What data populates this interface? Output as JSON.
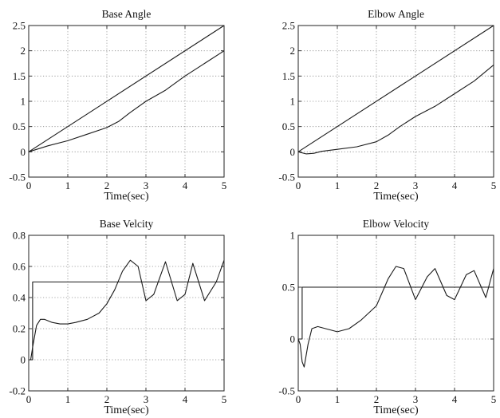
{
  "chart_data": [
    {
      "type": "line",
      "title": "Base Angle",
      "xlabel": "Time(sec)",
      "ylabel": "",
      "xlim": [
        0,
        5
      ],
      "ylim": [
        -0.5,
        2.5
      ],
      "xticks": [
        0,
        1,
        2,
        3,
        4,
        5
      ],
      "yticks": [
        -0.5,
        0,
        0.5,
        1,
        1.5,
        2,
        2.5
      ],
      "xtick_labels": [
        "0",
        "1",
        "2",
        "3",
        "4",
        "5"
      ],
      "ytick_labels": [
        "-0.5",
        "0",
        "0.5",
        "1",
        "1.5",
        "2",
        "2.5"
      ],
      "grid": true,
      "series": [
        {
          "x": [
            0,
            5
          ],
          "y": [
            0,
            2.5
          ]
        },
        {
          "x": [
            0,
            0.5,
            1.0,
            1.5,
            2.0,
            2.3,
            2.6,
            3.0,
            3.5,
            4.0,
            4.5,
            5.0
          ],
          "y": [
            0,
            0.12,
            0.22,
            0.35,
            0.48,
            0.6,
            0.78,
            1.0,
            1.22,
            1.5,
            1.75,
            2.0
          ]
        }
      ]
    },
    {
      "type": "line",
      "title": "Elbow Angle",
      "xlabel": "Time(sec)",
      "ylabel": "",
      "xlim": [
        0,
        5
      ],
      "ylim": [
        -0.5,
        2.5
      ],
      "xticks": [
        0,
        1,
        2,
        3,
        4,
        5
      ],
      "yticks": [
        -0.5,
        0,
        0.5,
        1,
        1.5,
        2,
        2.5
      ],
      "xtick_labels": [
        "0",
        "1",
        "2",
        "3",
        "4",
        "5"
      ],
      "ytick_labels": [
        "-0.5",
        "0",
        "0.5",
        "1",
        "1.5",
        "2",
        "2.5"
      ],
      "grid": true,
      "series": [
        {
          "x": [
            0,
            5
          ],
          "y": [
            0,
            2.5
          ]
        },
        {
          "x": [
            0,
            0.2,
            0.4,
            0.6,
            1.0,
            1.5,
            2.0,
            2.3,
            2.6,
            3.0,
            3.5,
            4.0,
            4.5,
            5.0
          ],
          "y": [
            0,
            -0.04,
            -0.03,
            0.01,
            0.05,
            0.1,
            0.2,
            0.33,
            0.5,
            0.7,
            0.9,
            1.15,
            1.4,
            1.72
          ]
        }
      ]
    },
    {
      "type": "line",
      "title": "Base Velcity",
      "xlabel": "Time(sec)",
      "ylabel": "",
      "xlim": [
        0,
        5
      ],
      "ylim": [
        -0.2,
        0.8
      ],
      "xticks": [
        0,
        1,
        2,
        3,
        4,
        5
      ],
      "yticks": [
        -0.2,
        0,
        0.2,
        0.4,
        0.6,
        0.8
      ],
      "xtick_labels": [
        "0",
        "1",
        "2",
        "3",
        "4",
        "5"
      ],
      "ytick_labels": [
        "-0.2",
        "0",
        "0.2",
        "0.4",
        "0.6",
        "0.8"
      ],
      "grid": true,
      "series": [
        {
          "x": [
            0,
            0.1,
            0.1,
            5
          ],
          "y": [
            0,
            0,
            0.5,
            0.5
          ]
        },
        {
          "x": [
            0,
            0.05,
            0.1,
            0.2,
            0.3,
            0.4,
            0.6,
            0.8,
            1.0,
            1.2,
            1.5,
            1.8,
            2.0,
            2.2,
            2.4,
            2.6,
            2.8,
            3.0,
            3.2,
            3.5,
            3.8,
            4.0,
            4.2,
            4.5,
            4.8,
            5.0
          ],
          "y": [
            0,
            0.0,
            0.08,
            0.22,
            0.26,
            0.26,
            0.24,
            0.23,
            0.23,
            0.24,
            0.26,
            0.3,
            0.36,
            0.45,
            0.57,
            0.64,
            0.6,
            0.38,
            0.42,
            0.63,
            0.38,
            0.42,
            0.62,
            0.38,
            0.5,
            0.64
          ]
        }
      ]
    },
    {
      "type": "line",
      "title": "Elbow Velocity",
      "xlabel": "Time(sec)",
      "ylabel": "",
      "xlim": [
        0,
        5
      ],
      "ylim": [
        -0.5,
        1
      ],
      "xticks": [
        0,
        1,
        2,
        3,
        4,
        5
      ],
      "yticks": [
        -0.5,
        0,
        0.5,
        1
      ],
      "xtick_labels": [
        "0",
        "1",
        "2",
        "3",
        "4",
        "5"
      ],
      "ytick_labels": [
        "-0.5",
        "0",
        "0.5",
        "1"
      ],
      "grid": true,
      "series": [
        {
          "x": [
            0,
            0.1,
            0.1,
            5
          ],
          "y": [
            0,
            0,
            0.5,
            0.5
          ]
        },
        {
          "x": [
            0,
            0.05,
            0.1,
            0.15,
            0.25,
            0.35,
            0.5,
            0.7,
            1.0,
            1.3,
            1.6,
            2.0,
            2.3,
            2.5,
            2.7,
            3.0,
            3.3,
            3.5,
            3.8,
            4.0,
            4.3,
            4.5,
            4.8,
            5.0
          ],
          "y": [
            0,
            -0.05,
            -0.22,
            -0.27,
            -0.05,
            0.1,
            0.12,
            0.1,
            0.07,
            0.1,
            0.18,
            0.32,
            0.58,
            0.7,
            0.68,
            0.38,
            0.6,
            0.68,
            0.42,
            0.38,
            0.62,
            0.66,
            0.4,
            0.68
          ]
        }
      ]
    }
  ]
}
